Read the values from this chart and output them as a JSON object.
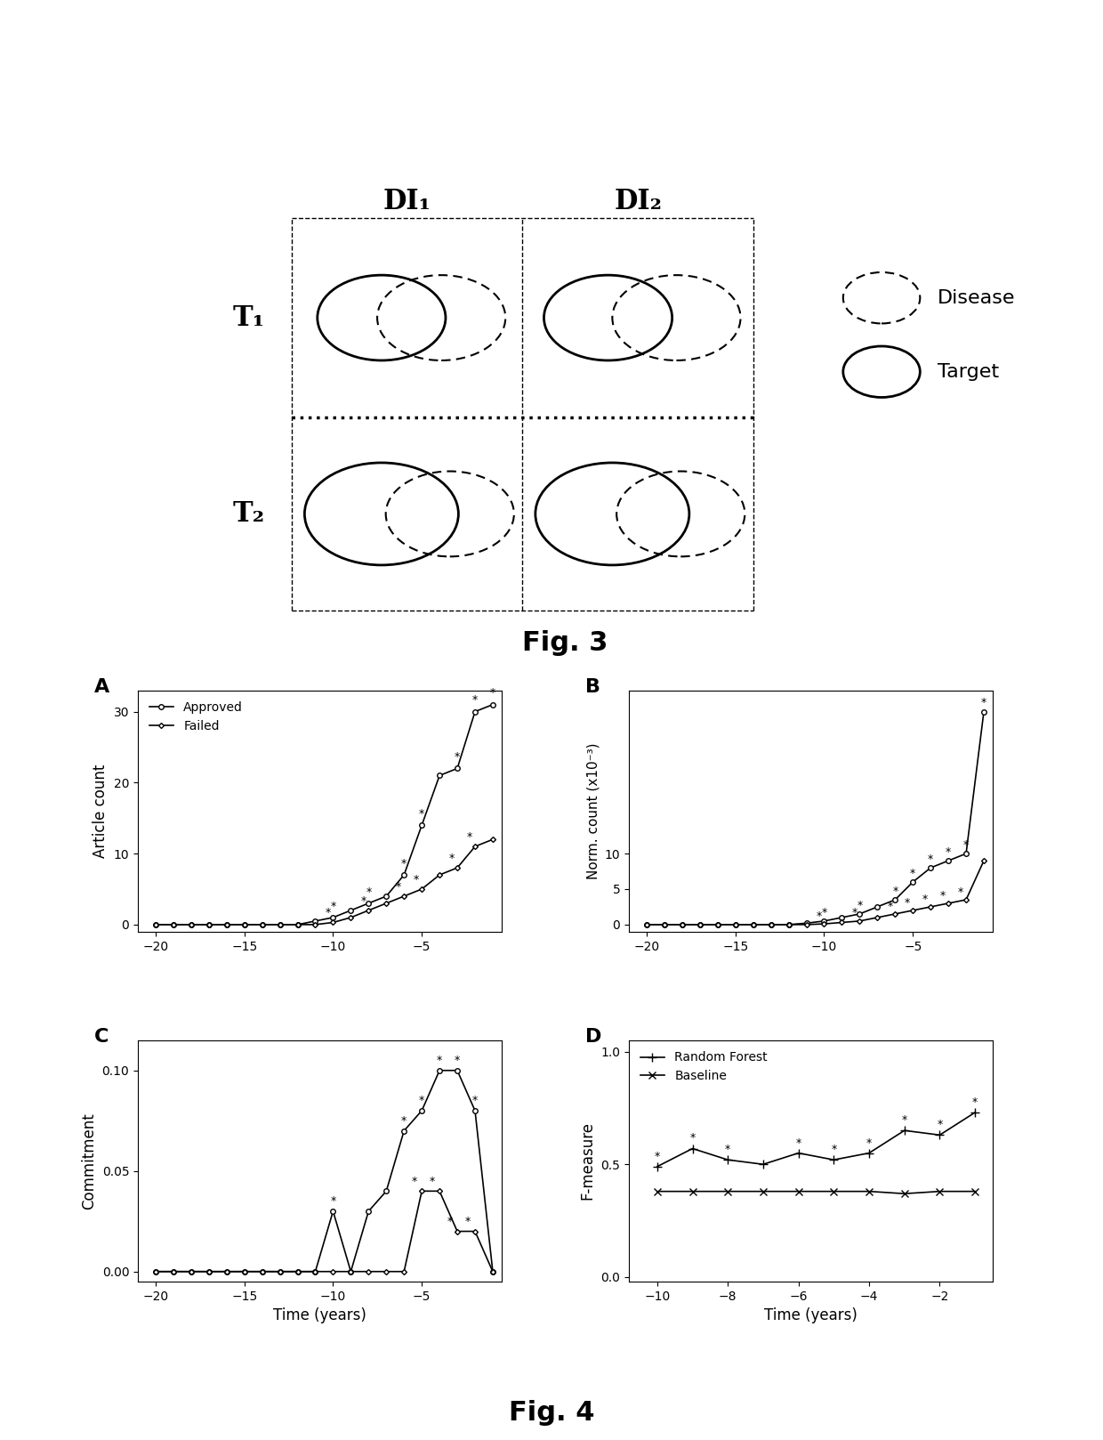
{
  "fig3_title": "Fig. 3",
  "fig4_title": "Fig. 4",
  "legend_disease": "Disease",
  "legend_target": "Target",
  "subplot_A_label": "A",
  "subplot_B_label": "B",
  "subplot_C_label": "C",
  "subplot_D_label": "D",
  "col_headers": [
    "DI₁",
    "DI₂"
  ],
  "row_headers": [
    "T₁",
    "T₂"
  ],
  "approved_label": "Approved",
  "failed_label": "Failed",
  "rf_label": "Random Forest",
  "baseline_label": "Baseline",
  "xlabel_time": "Time (years)",
  "ylabel_A": "Article count",
  "ylabel_B": "Norm. count (x10⁻³)",
  "ylabel_C": "Commitment",
  "ylabel_D": "F-measure",
  "A_x": [
    -20,
    -19,
    -18,
    -17,
    -16,
    -15,
    -14,
    -13,
    -12,
    -11,
    -10,
    -9,
    -8,
    -7,
    -6,
    -5,
    -4,
    -3,
    -2,
    -1
  ],
  "A_approved": [
    0,
    0,
    0,
    0,
    0,
    0,
    0,
    0,
    0,
    0.5,
    1,
    2,
    3,
    4,
    7,
    14,
    21,
    22,
    30,
    31
  ],
  "A_failed": [
    0,
    0,
    0,
    0,
    0,
    0,
    0,
    0,
    0,
    0,
    0.3,
    1,
    2,
    3,
    4,
    5,
    7,
    8,
    11,
    12
  ],
  "A_sig_approved": [
    -10,
    -8,
    -6,
    -5,
    -3,
    -2,
    -1
  ],
  "A_sig_failed": [
    -10,
    -8,
    -6,
    -5,
    -3,
    -2
  ],
  "B_x": [
    -20,
    -19,
    -18,
    -17,
    -16,
    -15,
    -14,
    -13,
    -12,
    -11,
    -10,
    -9,
    -8,
    -7,
    -6,
    -5,
    -4,
    -3,
    -2,
    -1
  ],
  "B_approved": [
    0,
    0,
    0,
    0,
    0,
    0,
    0,
    0,
    0,
    0.2,
    0.5,
    1,
    1.5,
    2.5,
    3.5,
    6,
    8,
    9,
    10,
    30
  ],
  "B_failed": [
    0,
    0,
    0,
    0,
    0,
    0,
    0,
    0,
    0,
    0,
    0.1,
    0.3,
    0.5,
    1,
    1.5,
    2,
    2.5,
    3,
    3.5,
    9
  ],
  "B_sig_approved": [
    -10,
    -8,
    -6,
    -5,
    -4,
    -3,
    -2,
    -1
  ],
  "B_sig_failed": [
    -10,
    -8,
    -6,
    -5,
    -4,
    -3,
    -2
  ],
  "C_x": [
    -20,
    -19,
    -18,
    -17,
    -16,
    -15,
    -14,
    -13,
    -12,
    -11,
    -10,
    -9,
    -8,
    -7,
    -6,
    -5,
    -4,
    -3,
    -2,
    -1
  ],
  "C_approved": [
    0,
    0,
    0,
    0,
    0,
    0,
    0,
    0,
    0,
    0,
    0.03,
    0,
    0.03,
    0.04,
    0.07,
    0.08,
    0.1,
    0.1,
    0.08,
    0
  ],
  "C_failed": [
    0,
    0,
    0,
    0,
    0,
    0,
    0,
    0,
    0,
    0,
    0,
    0,
    0,
    0,
    0,
    0.04,
    0.04,
    0.02,
    0.02,
    0
  ],
  "C_sig_approved": [
    -10,
    -6,
    -5,
    -4,
    -3,
    -2
  ],
  "C_sig_failed": [
    -5,
    -4,
    -3,
    -2
  ],
  "D_x": [
    -10,
    -9,
    -8,
    -7,
    -6,
    -5,
    -4,
    -3,
    -2,
    -1
  ],
  "D_rf": [
    0.49,
    0.57,
    0.52,
    0.5,
    0.55,
    0.52,
    0.55,
    0.65,
    0.63,
    0.73
  ],
  "D_baseline": [
    0.38,
    0.38,
    0.38,
    0.38,
    0.38,
    0.38,
    0.38,
    0.37,
    0.38,
    0.38
  ],
  "D_sig_rf": [
    -10,
    -9,
    -8,
    -6,
    -5,
    -4,
    -3,
    -2,
    -1
  ],
  "bg_color": "#ffffff",
  "line_color": "#000000",
  "gray_color": "#888888"
}
